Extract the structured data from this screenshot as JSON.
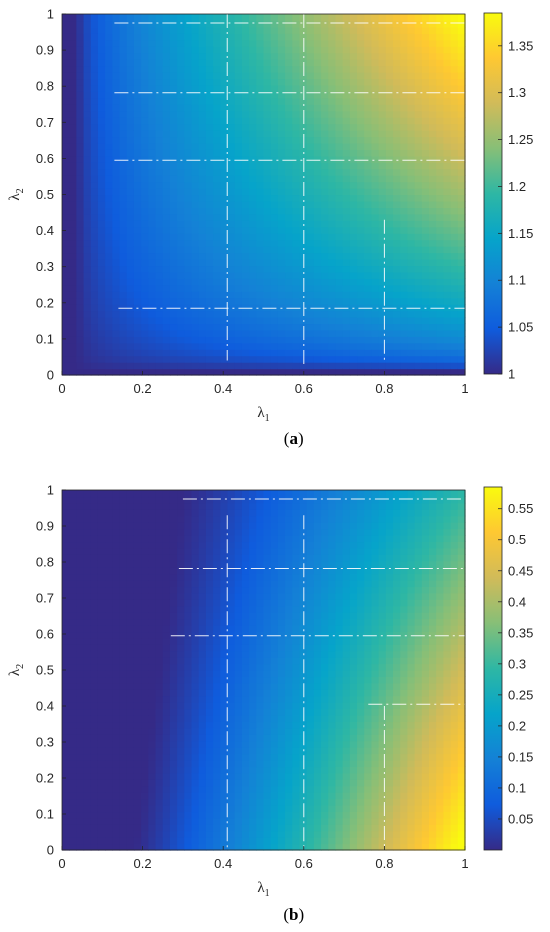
{
  "colors": {
    "colormap": "parula",
    "stops": [
      "#352a87",
      "#0f5cdd",
      "#1481d6",
      "#06a4ca",
      "#2eb7a4",
      "#87bf77",
      "#d1bb59",
      "#fec832",
      "#f9fb0e"
    ],
    "contour_line": "#ffffff"
  },
  "chart_data": [
    {
      "type": "heatmap",
      "panel_label": {
        "open": "(",
        "letter": "a",
        "close": ")"
      },
      "xlabel": {
        "symbol": "λ",
        "sub": "1"
      },
      "ylabel": {
        "symbol": "λ",
        "sub": "2"
      },
      "xlim": [
        0,
        1
      ],
      "ylim": [
        0,
        1
      ],
      "x_ticks": [
        "0",
        "0.2",
        "0.4",
        "0.6",
        "0.8",
        "1"
      ],
      "y_ticks": [
        "0",
        "0.1",
        "0.2",
        "0.3",
        "0.4",
        "0.5",
        "0.6",
        "0.7",
        "0.8",
        "0.9",
        "1"
      ],
      "colorbar": {
        "range": [
          1,
          1.385
        ],
        "ticks": [
          "1",
          "1.05",
          "1.1",
          "1.15",
          "1.2",
          "1.25",
          "1.3",
          "1.35"
        ]
      },
      "grid": false,
      "surface": "ratio rising from 1 near the left/bottom edges to about 1.385 at the top-right corner",
      "overlay_lines": {
        "horizontal": [
          0.975,
          0.782,
          0.595,
          0.185
        ],
        "vertical": [
          0.41,
          0.6,
          0.8
        ],
        "h_x_start": [
          0.13,
          0.13,
          0.13,
          0.14
        ],
        "v_y_end": [
          1.0,
          1.0,
          0.43
        ],
        "v_y_start": [
          0.04,
          0.03,
          0.04
        ]
      }
    },
    {
      "type": "heatmap",
      "panel_label": {
        "open": "(",
        "letter": "b",
        "close": ")"
      },
      "xlabel": {
        "symbol": "λ",
        "sub": "1"
      },
      "ylabel": {
        "symbol": "λ",
        "sub": "2"
      },
      "xlim": [
        0,
        1
      ],
      "ylim": [
        0,
        1
      ],
      "x_ticks": [
        "0",
        "0.2",
        "0.4",
        "0.6",
        "0.8",
        "1"
      ],
      "y_ticks": [
        "0",
        "0.1",
        "0.2",
        "0.3",
        "0.4",
        "0.5",
        "0.6",
        "0.7",
        "0.8",
        "0.9",
        "1"
      ],
      "colorbar": {
        "range": [
          0.0,
          0.585
        ],
        "ticks": [
          "0.05",
          "0.1",
          "0.15",
          "0.2",
          "0.25",
          "0.3",
          "0.35",
          "0.4",
          "0.45",
          "0.5",
          "0.55"
        ]
      },
      "grid": false,
      "surface": "value near 0 for small λ1, rising toward about 0.585 at bottom-right corner",
      "overlay_lines": {
        "horizontal": [
          0.975,
          0.782,
          0.595,
          0.405
        ],
        "vertical": [
          0.41,
          0.6,
          0.8
        ],
        "h_x_start": [
          0.3,
          0.29,
          0.27,
          0.76
        ],
        "v_y_end": [
          0.93,
          0.93,
          0.4
        ],
        "v_y_start": [
          0.0,
          0.0,
          0.0
        ]
      }
    }
  ]
}
